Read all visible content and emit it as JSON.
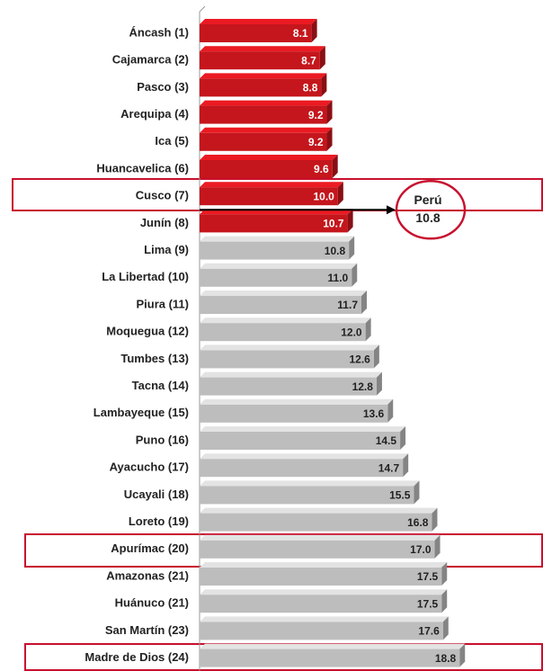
{
  "chart_data": {
    "type": "bar",
    "orientation": "horizontal",
    "categories": [
      "Áncash (1)",
      "Cajamarca (2)",
      "Pasco (3)",
      "Arequipa (4)",
      "Ica (5)",
      "Huancavelica (6)",
      "Cusco (7)",
      "Junín (8)",
      "Lima (9)",
      "La Libertad (10)",
      "Piura (11)",
      "Moquegua (12)",
      "Tumbes (13)",
      "Tacna (14)",
      "Lambayeque (15)",
      "Puno (16)",
      "Ayacucho (17)",
      "Ucayali (18)",
      "Loreto (19)",
      "Apurímac (20)",
      "Amazonas (21)",
      "Huánuco (21)",
      "San Martín (23)",
      "Madre de Dios (24)"
    ],
    "values": [
      8.1,
      8.7,
      8.8,
      9.2,
      9.2,
      9.6,
      10.0,
      10.7,
      10.8,
      11.0,
      11.7,
      12.0,
      12.6,
      12.8,
      13.6,
      14.5,
      14.7,
      15.5,
      16.8,
      17.0,
      17.5,
      17.5,
      17.6,
      18.8
    ],
    "value_labels": [
      "8.1",
      "8.7",
      "8.8",
      "9.2",
      "9.2",
      "9.6",
      "10.0",
      "10.7",
      "10.8",
      "11.0",
      "11.7",
      "12.0",
      "12.6",
      "12.8",
      "13.6",
      "14.5",
      "14.7",
      "15.5",
      "16.8",
      "17.0",
      "17.5",
      "17.5",
      "17.6",
      "18.8"
    ],
    "colors": [
      "#c4161c",
      "#c4161c",
      "#c4161c",
      "#c4161c",
      "#c4161c",
      "#c4161c",
      "#c4161c",
      "#c4161c",
      "#bdbdbd",
      "#bdbdbd",
      "#bdbdbd",
      "#bdbdbd",
      "#bdbdbd",
      "#bdbdbd",
      "#bdbdbd",
      "#bdbdbd",
      "#bdbdbd",
      "#bdbdbd",
      "#bdbdbd",
      "#bdbdbd",
      "#bdbdbd",
      "#bdbdbd",
      "#bdbdbd",
      "#bdbdbd"
    ],
    "xlim": [
      0,
      19.5
    ],
    "annotation": {
      "label": "Perú",
      "value": 10.8
    }
  }
}
